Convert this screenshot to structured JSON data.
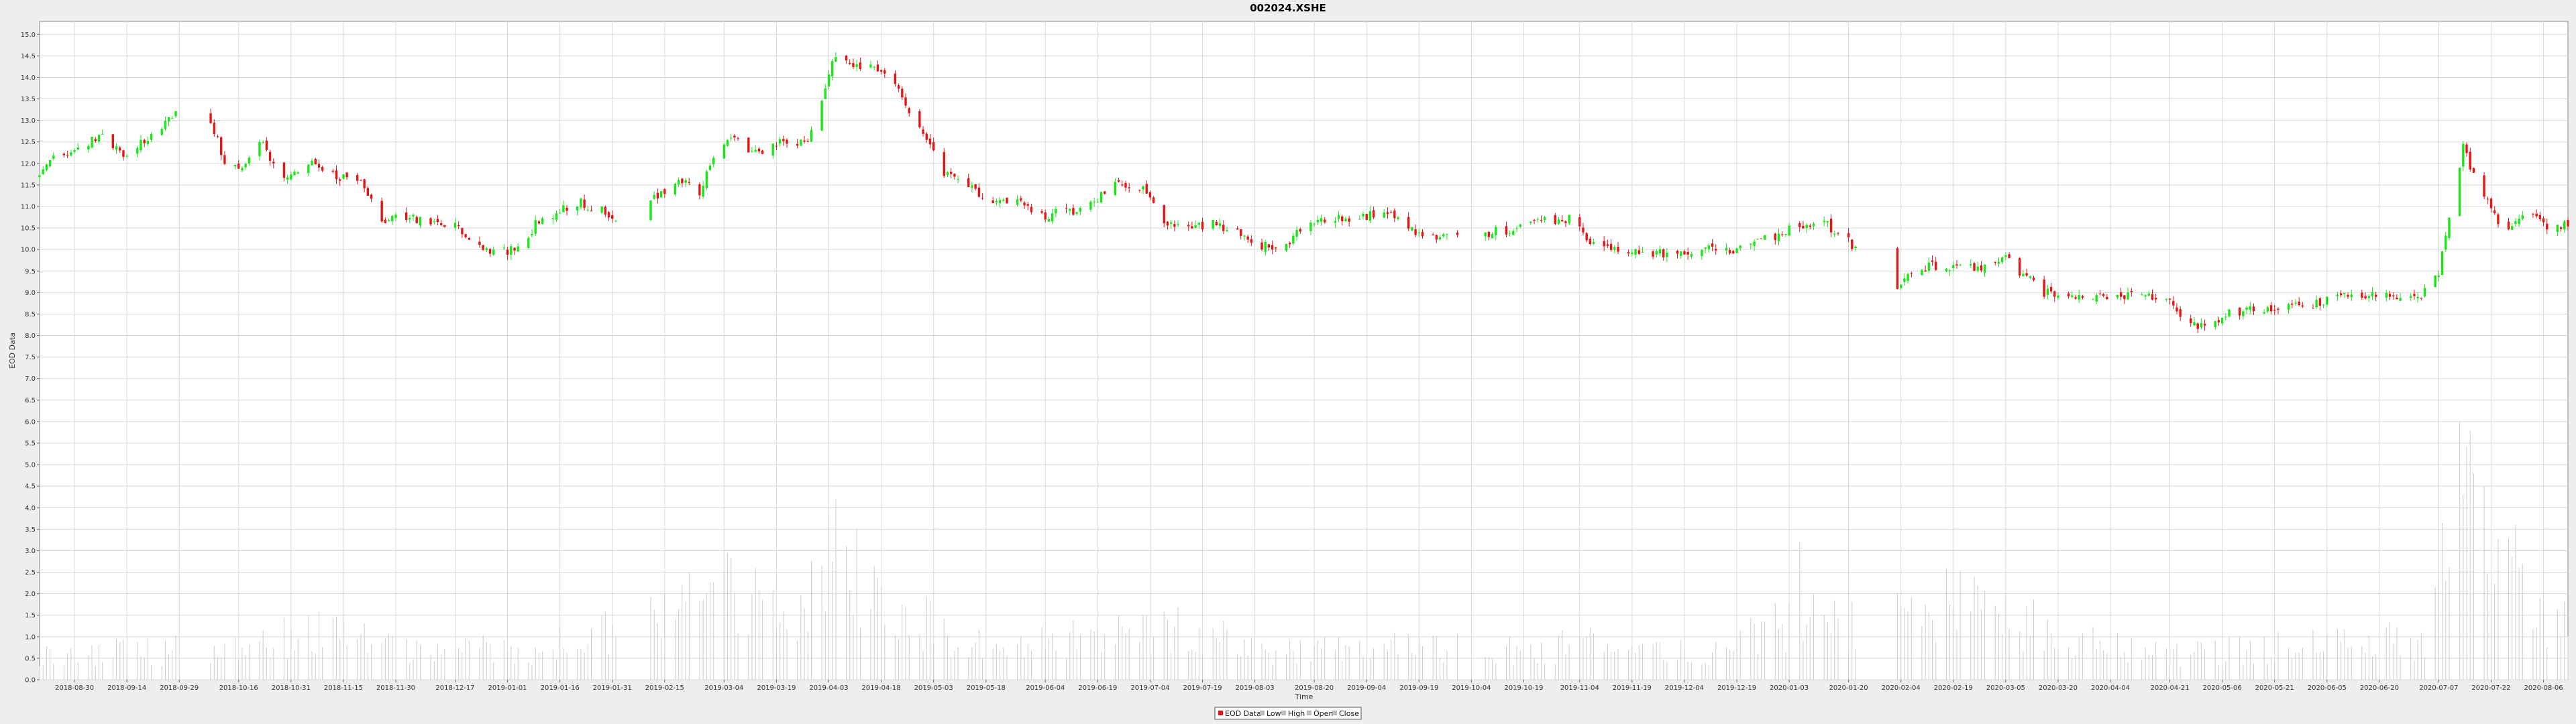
{
  "chart_data": {
    "type": "candlestick",
    "title": "002024.XSHE",
    "xlabel": "Time",
    "ylabel": "EOD Data",
    "ylim": [
      0,
      15.3
    ],
    "y_ticks": [
      "0.0",
      "0.5",
      "1.0",
      "1.5",
      "2.0",
      "2.5",
      "3.0",
      "3.5",
      "4.0",
      "4.5",
      "5.0",
      "5.5",
      "6.0",
      "6.5",
      "7.0",
      "7.5",
      "8.0",
      "8.5",
      "9.0",
      "9.5",
      "10.0",
      "10.5",
      "11.0",
      "11.5",
      "12.0",
      "12.5",
      "13.0",
      "13.5",
      "14.0",
      "14.5",
      "15.0"
    ],
    "x_range": [
      "2018-08-20",
      "2020-08-13"
    ],
    "x_ticks": [
      "2018-08-30",
      "2018-09-14",
      "2018-09-29",
      "2018-10-16",
      "2018-10-31",
      "2018-11-15",
      "2018-11-30",
      "2018-12-17",
      "2019-01-01",
      "2019-01-16",
      "2019-01-31",
      "2019-02-15",
      "2019-03-04",
      "2019-03-19",
      "2019-04-03",
      "2019-04-18",
      "2019-05-03",
      "2019-05-18",
      "2019-06-04",
      "2019-06-19",
      "2019-07-04",
      "2019-07-19",
      "2019-08-03",
      "2019-08-20",
      "2019-09-04",
      "2019-09-19",
      "2019-10-04",
      "2019-10-19",
      "2019-11-04",
      "2019-11-19",
      "2019-12-04",
      "2019-12-19",
      "2020-01-03",
      "2020-01-20",
      "2020-02-04",
      "2020-02-19",
      "2020-03-05",
      "2020-03-20",
      "2020-04-04",
      "2020-04-21",
      "2020-05-06",
      "2020-05-21",
      "2020-06-05",
      "2020-06-20",
      "2020-07-07",
      "2020-07-22",
      "2020-08-06"
    ],
    "close_anchors": [
      [
        "2018-08-20",
        11.7
      ],
      [
        "2018-08-24",
        12.1
      ],
      [
        "2018-08-31",
        12.3
      ],
      [
        "2018-09-07",
        12.7
      ],
      [
        "2018-09-12",
        12.2
      ],
      [
        "2018-09-19",
        12.5
      ],
      [
        "2018-09-25",
        12.9
      ],
      [
        "2018-09-30",
        13.4
      ],
      [
        "2018-10-08",
        13.0
      ],
      [
        "2018-10-12",
        12.0
      ],
      [
        "2018-10-17",
        11.8
      ],
      [
        "2018-10-22",
        12.5
      ],
      [
        "2018-10-30",
        11.6
      ],
      [
        "2018-11-05",
        12.0
      ],
      [
        "2018-11-12",
        11.7
      ],
      [
        "2018-11-20",
        11.6
      ],
      [
        "2018-11-26",
        10.6
      ],
      [
        "2018-12-03",
        10.8
      ],
      [
        "2018-12-10",
        10.6
      ],
      [
        "2018-12-17",
        10.6
      ],
      [
        "2018-12-24",
        10.0
      ],
      [
        "2018-12-28",
        9.9
      ],
      [
        "2019-01-04",
        10.0
      ],
      [
        "2019-01-10",
        10.7
      ],
      [
        "2019-01-16",
        10.9
      ],
      [
        "2019-01-22",
        11.1
      ],
      [
        "2019-01-28",
        10.9
      ],
      [
        "2019-02-01",
        10.7
      ],
      [
        "2019-02-12",
        11.2
      ],
      [
        "2019-02-20",
        11.6
      ],
      [
        "2019-02-25",
        11.3
      ],
      [
        "2019-03-01",
        12.2
      ],
      [
        "2019-03-06",
        12.7
      ],
      [
        "2019-03-12",
        12.2
      ],
      [
        "2019-03-20",
        12.5
      ],
      [
        "2019-03-28",
        12.5
      ],
      [
        "2019-04-01",
        13.4
      ],
      [
        "2019-04-04",
        14.4
      ],
      [
        "2019-04-10",
        14.3
      ],
      [
        "2019-04-16",
        14.3
      ],
      [
        "2019-04-22",
        13.9
      ],
      [
        "2019-04-26",
        13.2
      ],
      [
        "2019-04-30",
        12.6
      ],
      [
        "2019-05-06",
        11.8
      ],
      [
        "2019-05-12",
        11.5
      ],
      [
        "2019-05-20",
        11.1
      ],
      [
        "2019-05-27",
        11.1
      ],
      [
        "2019-06-04",
        10.8
      ],
      [
        "2019-06-12",
        10.9
      ],
      [
        "2019-06-19",
        11.2
      ],
      [
        "2019-06-25",
        11.6
      ],
      [
        "2019-07-02",
        11.4
      ],
      [
        "2019-07-08",
        10.6
      ],
      [
        "2019-07-15",
        10.5
      ],
      [
        "2019-07-22",
        10.6
      ],
      [
        "2019-07-29",
        10.4
      ],
      [
        "2019-08-05",
        10.1
      ],
      [
        "2019-08-12",
        10.1
      ],
      [
        "2019-08-19",
        10.7
      ],
      [
        "2019-08-26",
        10.7
      ],
      [
        "2019-09-02",
        10.7
      ],
      [
        "2019-09-09",
        10.9
      ],
      [
        "2019-09-16",
        10.5
      ],
      [
        "2019-09-22",
        10.3
      ],
      [
        "2019-09-30",
        10.4
      ],
      [
        "2019-10-10",
        10.4
      ],
      [
        "2019-10-17",
        10.5
      ],
      [
        "2019-10-24",
        10.7
      ],
      [
        "2019-11-01",
        10.7
      ],
      [
        "2019-11-07",
        10.2
      ],
      [
        "2019-11-14",
        10.0
      ],
      [
        "2019-11-21",
        9.9
      ],
      [
        "2019-11-28",
        9.9
      ],
      [
        "2019-12-06",
        10.0
      ],
      [
        "2019-12-12",
        10.1
      ],
      [
        "2019-12-18",
        10.0
      ],
      [
        "2019-12-25",
        10.2
      ],
      [
        "2019-12-31",
        10.3
      ],
      [
        "2020-01-06",
        10.6
      ],
      [
        "2020-01-13",
        10.6
      ],
      [
        "2020-01-19",
        10.3
      ],
      [
        "2020-01-22",
        10.0
      ],
      [
        "2020-02-03",
        9.1
      ],
      [
        "2020-02-06",
        9.4
      ],
      [
        "2020-02-12",
        9.6
      ],
      [
        "2020-02-20",
        9.6
      ],
      [
        "2020-02-27",
        9.6
      ],
      [
        "2020-03-05",
        9.8
      ],
      [
        "2020-03-10",
        9.4
      ],
      [
        "2020-03-16",
        9.0
      ],
      [
        "2020-03-23",
        8.9
      ],
      [
        "2020-03-30",
        8.9
      ],
      [
        "2020-04-06",
        8.9
      ],
      [
        "2020-04-13",
        8.9
      ],
      [
        "2020-04-20",
        8.8
      ],
      [
        "2020-04-27",
        8.3
      ],
      [
        "2020-04-30",
        8.2
      ],
      [
        "2020-05-08",
        8.5
      ],
      [
        "2020-05-15",
        8.6
      ],
      [
        "2020-05-22",
        8.7
      ],
      [
        "2020-05-29",
        8.7
      ],
      [
        "2020-06-05",
        8.8
      ],
      [
        "2020-06-12",
        9.0
      ],
      [
        "2020-06-19",
        8.9
      ],
      [
        "2020-06-26",
        8.9
      ],
      [
        "2020-07-02",
        8.9
      ],
      [
        "2020-07-07",
        9.5
      ],
      [
        "2020-07-10",
        10.8
      ],
      [
        "2020-07-14",
        12.4
      ],
      [
        "2020-07-17",
        11.7
      ],
      [
        "2020-07-21",
        11.2
      ],
      [
        "2020-07-24",
        10.5
      ],
      [
        "2020-07-29",
        10.6
      ],
      [
        "2020-08-03",
        10.9
      ],
      [
        "2020-08-07",
        10.5
      ],
      [
        "2020-08-13",
        10.6
      ]
    ],
    "gaps": [
      [
        "2018-10-01",
        "2018-10-07"
      ],
      [
        "2019-02-04",
        "2019-02-10"
      ],
      [
        "2019-10-01",
        "2019-10-07"
      ],
      [
        "2020-01-23",
        "2020-02-02"
      ]
    ],
    "volume_anchors": [
      [
        "2018-08-20",
        0.6
      ],
      [
        "2018-09-20",
        0.7
      ],
      [
        "2018-10-20",
        0.9
      ],
      [
        "2018-11-05",
        1.2
      ],
      [
        "2018-11-30",
        0.8
      ],
      [
        "2019-01-05",
        0.7
      ],
      [
        "2019-02-15",
        1.4
      ],
      [
        "2019-03-05",
        2.2
      ],
      [
        "2019-03-25",
        1.6
      ],
      [
        "2019-04-03",
        3.0
      ],
      [
        "2019-04-20",
        1.8
      ],
      [
        "2019-05-15",
        0.9
      ],
      [
        "2019-06-20",
        1.0
      ],
      [
        "2019-07-10",
        1.2
      ],
      [
        "2019-08-10",
        0.7
      ],
      [
        "2019-09-10",
        0.8
      ],
      [
        "2019-10-20",
        0.7
      ],
      [
        "2019-11-10",
        0.9
      ],
      [
        "2019-12-10",
        0.6
      ],
      [
        "2020-01-05",
        1.5
      ],
      [
        "2020-01-20",
        1.3
      ],
      [
        "2020-02-10",
        1.9
      ],
      [
        "2020-03-05",
        1.6
      ],
      [
        "2020-03-25",
        1.0
      ],
      [
        "2020-04-20",
        0.6
      ],
      [
        "2020-05-20",
        0.8
      ],
      [
        "2020-06-20",
        0.9
      ],
      [
        "2020-07-03",
        1.0
      ],
      [
        "2020-07-10",
        3.5
      ],
      [
        "2020-07-16",
        4.5
      ],
      [
        "2020-07-25",
        2.4
      ],
      [
        "2020-08-13",
        1.2
      ]
    ],
    "volume_spikes": [
      [
        "2019-04-05",
        4.2
      ],
      [
        "2020-01-06",
        3.2
      ],
      [
        "2020-07-13",
        6.0
      ],
      [
        "2020-07-16",
        5.8
      ],
      [
        "2020-07-29",
        3.6
      ],
      [
        "2019-03-13",
        2.6
      ],
      [
        "2019-02-22",
        2.5
      ]
    ],
    "up_color": "#19e619",
    "down_color": "#e61414",
    "volume_color": "#cccccc",
    "grid": true,
    "legend_position": "bottom-center",
    "legend": [
      {
        "label": "EOD Data",
        "color": "#e61414"
      },
      {
        "label": "Low",
        "color": "#bbbbbb"
      },
      {
        "label": "High",
        "color": "#bbbbbb"
      },
      {
        "label": "Open",
        "color": "#bbbbbb"
      },
      {
        "label": "Close",
        "color": "#bbbbbb"
      }
    ]
  }
}
